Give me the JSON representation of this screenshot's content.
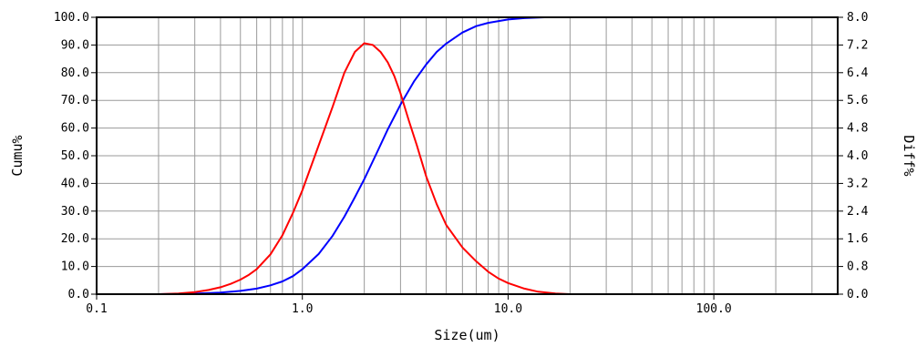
{
  "chart_data": {
    "type": "line",
    "xlabel": "Size(um)",
    "ylabel_left": "Cumu%",
    "ylabel_right": "Diff%",
    "x_scale": "log",
    "xlim": [
      0.1,
      400
    ],
    "ylim_left": [
      0,
      100
    ],
    "ylim_right": [
      0,
      8
    ],
    "grid": true,
    "x_ticks": [
      {
        "value": 0.1,
        "label": "0.1"
      },
      {
        "value": 1,
        "label": "1.0"
      },
      {
        "value": 10,
        "label": "10.0"
      },
      {
        "value": 100,
        "label": "100.0"
      }
    ],
    "y_ticks_left": [
      "0.0",
      "10.0",
      "20.0",
      "30.0",
      "40.0",
      "50.0",
      "60.0",
      "70.0",
      "80.0",
      "90.0",
      "100.0"
    ],
    "y_ticks_right": [
      "0.0",
      "0.8",
      "1.6",
      "2.4",
      "3.2",
      "4.0",
      "4.8",
      "5.6",
      "6.4",
      "7.2",
      "8.0"
    ],
    "series": [
      {
        "axis": "left",
        "color": "#0000ff",
        "x": [
          0.1,
          0.2,
          0.3,
          0.4,
          0.5,
          0.6,
          0.7,
          0.8,
          0.9,
          1.0,
          1.2,
          1.4,
          1.6,
          1.8,
          2.0,
          2.3,
          2.6,
          3.0,
          3.5,
          4.0,
          4.5,
          5.0,
          6.0,
          7.0,
          8.0,
          10.0,
          12.0,
          15.0,
          20.0,
          30.0,
          50.0,
          100.0,
          200.0,
          350.0
        ],
        "y": [
          0,
          0,
          0.2,
          0.6,
          1.2,
          2.0,
          3.2,
          4.6,
          6.5,
          9.0,
          14.5,
          21.0,
          28.0,
          35.0,
          41.5,
          51.0,
          59.5,
          68.5,
          77.0,
          83.0,
          87.5,
          90.5,
          94.5,
          96.8,
          98.0,
          99.2,
          99.7,
          100,
          100,
          100,
          100,
          100,
          100,
          100
        ]
      },
      {
        "axis": "right",
        "color": "#ff0000",
        "x": [
          0.1,
          0.2,
          0.25,
          0.3,
          0.35,
          0.4,
          0.45,
          0.5,
          0.55,
          0.6,
          0.7,
          0.8,
          0.9,
          1.0,
          1.2,
          1.4,
          1.6,
          1.8,
          2.0,
          2.2,
          2.4,
          2.6,
          2.8,
          3.0,
          3.3,
          3.6,
          4.0,
          4.5,
          5.0,
          6.0,
          7.0,
          8.0,
          9.0,
          10.0,
          12.0,
          14.0,
          17.0,
          20.0,
          50.0,
          100.0,
          200.0,
          350.0
        ],
        "y": [
          0,
          0,
          0.02,
          0.06,
          0.12,
          0.2,
          0.3,
          0.42,
          0.56,
          0.72,
          1.15,
          1.7,
          2.35,
          3.0,
          4.3,
          5.4,
          6.4,
          7.0,
          7.25,
          7.2,
          7.0,
          6.7,
          6.3,
          5.8,
          5.0,
          4.3,
          3.4,
          2.6,
          2.0,
          1.35,
          0.95,
          0.65,
          0.45,
          0.32,
          0.16,
          0.07,
          0.02,
          0,
          0,
          0,
          0,
          0
        ]
      }
    ]
  }
}
